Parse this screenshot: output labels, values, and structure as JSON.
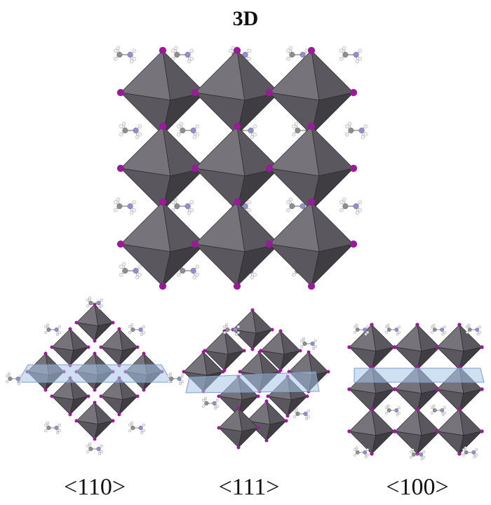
{
  "figure": {
    "title": "3D",
    "views": [
      {
        "id": "view-110",
        "label": "<110>"
      },
      {
        "id": "view-111",
        "label": "<111>"
      },
      {
        "id": "view-100",
        "label": "<100>"
      }
    ]
  },
  "colors": {
    "octahedron_dark": "#3f3d42",
    "octahedron_mid": "#5a585e",
    "octahedron_light": "#76747a",
    "iodide": "#9a1a99",
    "carbon": "#8e8e8e",
    "nitrogen": "#8f8fd6",
    "hydrogen": "#f2f2f2",
    "plane": "#a9c6ea"
  }
}
